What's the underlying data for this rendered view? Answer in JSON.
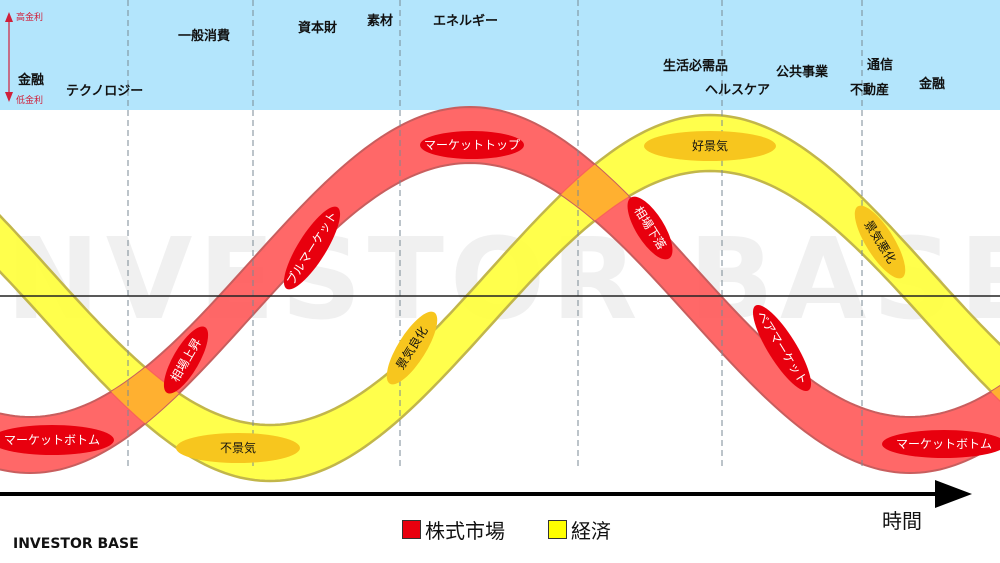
{
  "watermark": "INVESTOR BASE",
  "rate_axis": {
    "high": "高金利",
    "low": "低金利"
  },
  "sectors": [
    {
      "id": "finance-1",
      "label": "金融"
    },
    {
      "id": "technology",
      "label": "テクノロジー"
    },
    {
      "id": "consumer-discretionary",
      "label": "一般消費"
    },
    {
      "id": "capital-goods",
      "label": "資本財"
    },
    {
      "id": "materials",
      "label": "素材"
    },
    {
      "id": "energy",
      "label": "エネルギー"
    },
    {
      "id": "consumer-staples",
      "label": "生活必需品"
    },
    {
      "id": "healthcare",
      "label": "ヘルスケア"
    },
    {
      "id": "utilities",
      "label": "公共事業"
    },
    {
      "id": "telecom",
      "label": "通信"
    },
    {
      "id": "real-estate",
      "label": "不動産"
    },
    {
      "id": "finance-2",
      "label": "金融"
    }
  ],
  "phases": {
    "market_bottom_left": "マーケットボトム",
    "market_rise": "相場上昇",
    "bull_market": "ブルマーケット",
    "market_top": "マーケットトップ",
    "market_fall": "相場下落",
    "bear_market": "ベアマーケット",
    "market_bottom_right": "マーケットボトム",
    "recession": "不景気",
    "economy_improving": "景気良化",
    "boom": "好景気",
    "economy_worsening": "景気悪化"
  },
  "legend": [
    {
      "label": "株式市場",
      "color": "#e8000e"
    },
    {
      "label": "経済",
      "color": "#ffff00"
    }
  ],
  "time_label": "時間",
  "brand": "INVESTOR BASE",
  "colors": {
    "rate_band": "#b3e5fc",
    "stock_band": "#ff5b5b",
    "economy_band": "#ffff33",
    "overlap": "#ffb030",
    "phase_badge": "#e8000e",
    "econ_badge": "#f7c61e"
  }
}
